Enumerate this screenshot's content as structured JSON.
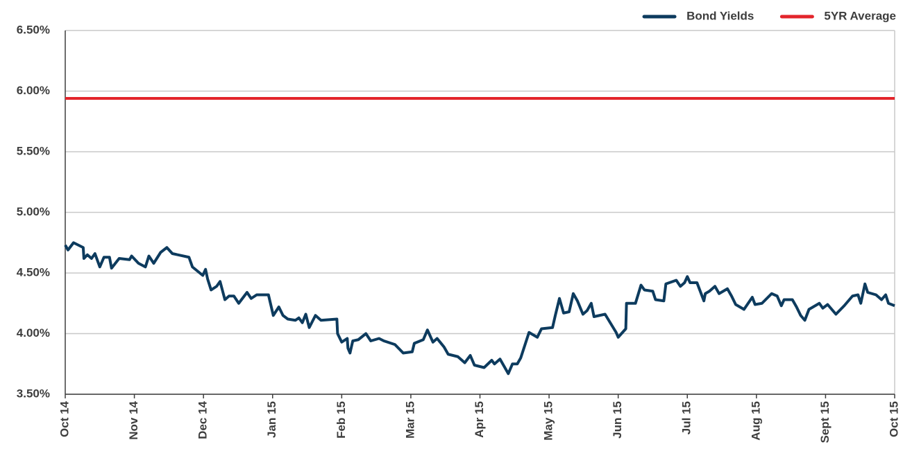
{
  "chart_data": {
    "type": "line",
    "xlim": [
      0,
      12
    ],
    "xticks": [
      {
        "value": 0,
        "label": "Oct 14"
      },
      {
        "value": 1,
        "label": "Nov 14"
      },
      {
        "value": 2,
        "label": "Dec 14"
      },
      {
        "value": 3,
        "label": "Jan 15"
      },
      {
        "value": 4,
        "label": "Feb 15"
      },
      {
        "value": 5,
        "label": "Mar 15"
      },
      {
        "value": 6,
        "label": "Apr 15"
      },
      {
        "value": 7,
        "label": "May 15"
      },
      {
        "value": 8,
        "label": "Jun 15"
      },
      {
        "value": 9,
        "label": "Jul 15"
      },
      {
        "value": 10,
        "label": "Aug 15"
      },
      {
        "value": 11,
        "label": "Sept 15"
      },
      {
        "value": 12,
        "label": "Oct 15"
      }
    ],
    "ylim": [
      3.5,
      6.5
    ],
    "yticks": [
      {
        "value": 3.5,
        "label": "3.50%"
      },
      {
        "value": 4.0,
        "label": "4.00%"
      },
      {
        "value": 4.5,
        "label": "4.50%"
      },
      {
        "value": 5.0,
        "label": "5.00%"
      },
      {
        "value": 5.5,
        "label": "5.50%"
      },
      {
        "value": 6.0,
        "label": "6.00%"
      },
      {
        "value": 6.5,
        "label": "6.50%"
      }
    ],
    "grid": true,
    "legend": "top-right",
    "series": [
      {
        "name": "Bond Yields",
        "color": "#0d3b5e",
        "x": [
          0,
          0.04,
          0.12,
          0.26,
          0.27,
          0.32,
          0.38,
          0.43,
          0.5,
          0.56,
          0.64,
          0.67,
          0.78,
          0.93,
          0.96,
          1.06,
          1.16,
          1.21,
          1.28,
          1.38,
          1.47,
          1.55,
          1.79,
          1.84,
          1.99,
          2.03,
          2.06,
          2.11,
          2.19,
          2.24,
          2.31,
          2.37,
          2.44,
          2.51,
          2.63,
          2.69,
          2.77,
          2.94,
          3.01,
          3.09,
          3.15,
          3.22,
          3.33,
          3.38,
          3.43,
          3.48,
          3.53,
          3.62,
          3.7,
          3.93,
          3.94,
          4.0,
          4.08,
          4.09,
          4.12,
          4.16,
          4.24,
          4.35,
          4.42,
          4.54,
          4.61,
          4.77,
          4.89,
          5.02,
          5.05,
          5.18,
          5.24,
          5.32,
          5.38,
          5.48,
          5.54,
          5.68,
          5.78,
          5.86,
          5.92,
          6.06,
          6.17,
          6.21,
          6.29,
          6.41,
          6.47,
          6.54,
          6.59,
          6.71,
          6.83,
          6.89,
          7.05,
          7.09,
          7.15,
          7.21,
          7.29,
          7.35,
          7.41,
          7.49,
          7.55,
          7.61,
          7.65,
          7.81,
          7.97,
          8.0,
          8.11,
          8.12,
          8.25,
          8.33,
          8.38,
          8.5,
          8.54,
          8.66,
          8.69,
          8.84,
          8.9,
          8.96,
          9.0,
          9.04,
          9.14,
          9.18,
          9.24,
          9.26,
          9.32,
          9.4,
          9.46,
          9.58,
          9.64,
          9.7,
          9.82,
          9.94,
          9.98,
          10.08,
          10.22,
          10.3,
          10.36,
          10.4,
          10.52,
          10.58,
          10.64,
          10.7,
          10.76,
          10.91,
          10.96,
          11.03,
          11.15,
          11.27,
          11.39,
          11.47,
          11.51,
          11.57,
          11.61,
          11.73,
          11.81,
          11.87,
          11.91,
          12.0
        ],
        "values": [
          4.73,
          4.69,
          4.75,
          4.71,
          4.62,
          4.65,
          4.62,
          4.66,
          4.55,
          4.63,
          4.63,
          4.54,
          4.62,
          4.61,
          4.64,
          4.58,
          4.55,
          4.64,
          4.58,
          4.67,
          4.71,
          4.66,
          4.63,
          4.55,
          4.48,
          4.53,
          4.45,
          4.36,
          4.39,
          4.43,
          4.28,
          4.31,
          4.31,
          4.25,
          4.34,
          4.29,
          4.32,
          4.32,
          4.15,
          4.22,
          4.15,
          4.12,
          4.11,
          4.13,
          4.09,
          4.16,
          4.05,
          4.15,
          4.11,
          4.12,
          4.0,
          3.93,
          3.96,
          3.88,
          3.84,
          3.94,
          3.95,
          4.0,
          3.94,
          3.96,
          3.94,
          3.91,
          3.84,
          3.85,
          3.92,
          3.95,
          4.03,
          3.93,
          3.96,
          3.89,
          3.83,
          3.81,
          3.76,
          3.82,
          3.74,
          3.72,
          3.78,
          3.75,
          3.79,
          3.67,
          3.75,
          3.75,
          3.8,
          4.01,
          3.97,
          4.04,
          4.05,
          4.15,
          4.29,
          4.17,
          4.18,
          4.33,
          4.27,
          4.16,
          4.19,
          4.25,
          4.14,
          4.16,
          4.01,
          3.97,
          4.04,
          4.25,
          4.25,
          4.4,
          4.36,
          4.35,
          4.28,
          4.27,
          4.41,
          4.44,
          4.39,
          4.42,
          4.47,
          4.42,
          4.42,
          4.36,
          4.27,
          4.33,
          4.35,
          4.39,
          4.33,
          4.37,
          4.31,
          4.24,
          4.2,
          4.3,
          4.24,
          4.25,
          4.33,
          4.31,
          4.23,
          4.28,
          4.28,
          4.22,
          4.15,
          4.11,
          4.2,
          4.25,
          4.21,
          4.24,
          4.16,
          4.23,
          4.31,
          4.32,
          4.25,
          4.41,
          4.34,
          4.32,
          4.28,
          4.32,
          4.25,
          4.23
        ]
      },
      {
        "name": "5YR Average",
        "color": "#e3242b",
        "x": [
          0,
          12
        ],
        "values": [
          5.94,
          5.94
        ]
      }
    ]
  }
}
